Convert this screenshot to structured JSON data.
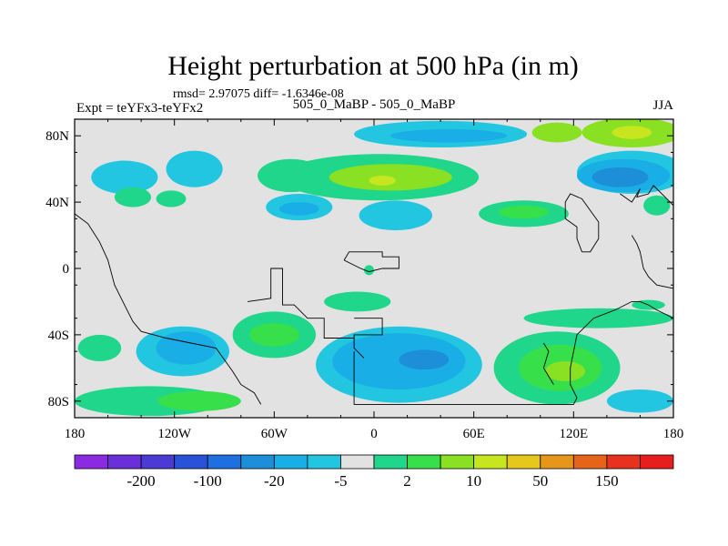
{
  "chart_data": {
    "type": "heatmap",
    "title": "Height perturbation at 500 hPa (in m)",
    "stats": "rmsd= 2.97075  diff= -1.6346e-08",
    "left_label": "Expt = teYFx3-teYFx2",
    "center_label": "505_0_MaBP - 505_0_MaBP",
    "right_label": "JJA",
    "projection": "cylindrical-equidistant",
    "xlim": [
      -180,
      180
    ],
    "ylim": [
      -90,
      90
    ],
    "x_ticks": [
      {
        "value": -180,
        "label": "180"
      },
      {
        "value": -120,
        "label": "120W"
      },
      {
        "value": -60,
        "label": "60W"
      },
      {
        "value": 0,
        "label": "0"
      },
      {
        "value": 60,
        "label": "60E"
      },
      {
        "value": 120,
        "label": "120E"
      },
      {
        "value": 180,
        "label": "180"
      }
    ],
    "y_ticks": [
      {
        "value": 80,
        "label": "80N"
      },
      {
        "value": 40,
        "label": "40N"
      },
      {
        "value": 0,
        "label": "0"
      },
      {
        "value": -40,
        "label": "40S"
      },
      {
        "value": -80,
        "label": "80S"
      }
    ],
    "colorbar": {
      "colors": [
        "#8a2be2",
        "#6a2fd8",
        "#4b3bd4",
        "#2a52d8",
        "#1f6fe0",
        "#1d8fd8",
        "#1aaee6",
        "#22c6e0",
        "#e2e2e2",
        "#1fd68a",
        "#37e04a",
        "#8ae022",
        "#c8e620",
        "#e6c81c",
        "#e6961a",
        "#e6641a",
        "#e6321e",
        "#e61e1e"
      ],
      "labels": [
        {
          "after_box": 2,
          "text": "-200"
        },
        {
          "after_box": 4,
          "text": "-100"
        },
        {
          "after_box": 6,
          "text": "-20"
        },
        {
          "after_box": 8,
          "text": "-5"
        },
        {
          "after_box": 10,
          "text": "2"
        },
        {
          "after_box": 12,
          "text": "10"
        },
        {
          "after_box": 14,
          "text": "50"
        },
        {
          "after_box": 16,
          "text": "150"
        }
      ]
    },
    "blobs": [
      {
        "lon": 155,
        "lat": 82,
        "rlon": 30,
        "rlat": 9,
        "level": 11
      },
      {
        "lon": 155,
        "lat": 82,
        "rlon": 12,
        "rlat": 4,
        "level": 12
      },
      {
        "lon": 155,
        "lat": 58,
        "rlon": 33,
        "rlat": 13,
        "level": 7
      },
      {
        "lon": 150,
        "lat": 56,
        "rlon": 28,
        "rlat": 10,
        "level": 6
      },
      {
        "lon": 148,
        "lat": 55,
        "rlon": 17,
        "rlat": 6,
        "level": 5
      },
      {
        "lon": 110,
        "lat": 82,
        "rlon": 15,
        "rlat": 6,
        "level": 11
      },
      {
        "lon": 40,
        "lat": 81,
        "rlon": 52,
        "rlat": 8,
        "level": 7
      },
      {
        "lon": 45,
        "lat": 80,
        "rlon": 35,
        "rlat": 4,
        "level": 6
      },
      {
        "lon": 3,
        "lat": 55,
        "rlon": 60,
        "rlat": 14,
        "level": 9
      },
      {
        "lon": -50,
        "lat": 56,
        "rlon": 20,
        "rlat": 10,
        "level": 9
      },
      {
        "lon": 10,
        "lat": 55,
        "rlon": 37,
        "rlat": 8,
        "level": 11
      },
      {
        "lon": 5,
        "lat": 53,
        "rlon": 8,
        "rlat": 3,
        "level": 12
      },
      {
        "lon": -150,
        "lat": 55,
        "rlon": 20,
        "rlat": 10,
        "level": 7
      },
      {
        "lon": -108,
        "lat": 60,
        "rlon": 17,
        "rlat": 11,
        "level": 7
      },
      {
        "lon": -145,
        "lat": 43,
        "rlon": 11,
        "rlat": 6,
        "level": 9
      },
      {
        "lon": -122,
        "lat": 42,
        "rlon": 9,
        "rlat": 5,
        "level": 9
      },
      {
        "lon": -45,
        "lat": 37,
        "rlon": 20,
        "rlat": 8,
        "level": 7
      },
      {
        "lon": -45,
        "lat": 36,
        "rlon": 12,
        "rlat": 4,
        "level": 6
      },
      {
        "lon": 13,
        "lat": 32,
        "rlon": 22,
        "rlat": 9,
        "level": 7
      },
      {
        "lon": 90,
        "lat": 33,
        "rlon": 27,
        "rlat": 8,
        "level": 9
      },
      {
        "lon": 90,
        "lat": 34,
        "rlon": 15,
        "rlat": 4,
        "level": 10
      },
      {
        "lon": 170,
        "lat": 38,
        "rlon": 8,
        "rlat": 6,
        "level": 9
      },
      {
        "lon": -3,
        "lat": -1,
        "rlon": 3,
        "rlat": 3,
        "level": 9
      },
      {
        "lon": -60,
        "lat": -40,
        "rlon": 25,
        "rlat": 14,
        "level": 9
      },
      {
        "lon": -60,
        "lat": -40,
        "rlon": 15,
        "rlat": 7,
        "level": 10
      },
      {
        "lon": -115,
        "lat": -50,
        "rlon": 28,
        "rlat": 15,
        "level": 7
      },
      {
        "lon": -113,
        "lat": -48,
        "rlon": 18,
        "rlat": 10,
        "level": 6
      },
      {
        "lon": -165,
        "lat": -48,
        "rlon": 13,
        "rlat": 8,
        "level": 9
      },
      {
        "lon": -135,
        "lat": -80,
        "rlon": 45,
        "rlat": 9,
        "level": 9
      },
      {
        "lon": -105,
        "lat": -80,
        "rlon": 25,
        "rlat": 6,
        "level": 10
      },
      {
        "lon": -10,
        "lat": -20,
        "rlon": 20,
        "rlat": 6,
        "level": 9
      },
      {
        "lon": 15,
        "lat": -58,
        "rlon": 50,
        "rlat": 23,
        "level": 7
      },
      {
        "lon": 15,
        "lat": -56,
        "rlon": 40,
        "rlat": 17,
        "level": 6
      },
      {
        "lon": 30,
        "lat": -55,
        "rlon": 15,
        "rlat": 6,
        "level": 5
      },
      {
        "lon": 110,
        "lat": -60,
        "rlon": 38,
        "rlat": 22,
        "level": 9
      },
      {
        "lon": 112,
        "lat": -60,
        "rlon": 25,
        "rlat": 14,
        "level": 10
      },
      {
        "lon": 115,
        "lat": -62,
        "rlon": 12,
        "rlat": 6,
        "level": 11
      },
      {
        "lon": 160,
        "lat": -80,
        "rlon": 20,
        "rlat": 7,
        "level": 7
      },
      {
        "lon": 135,
        "lat": -30,
        "rlon": 45,
        "rlat": 6,
        "level": 9
      },
      {
        "lon": 165,
        "lat": -22,
        "rlon": 10,
        "rlat": 3,
        "level": 9
      }
    ],
    "coastlines": [
      [
        [
          -180,
          33
        ],
        [
          -172,
          27
        ],
        [
          -165,
          16
        ],
        [
          -160,
          5
        ],
        [
          -156,
          -10
        ],
        [
          -150,
          -22
        ],
        [
          -145,
          -32
        ],
        [
          -140,
          -38
        ],
        [
          -125,
          -42
        ],
        [
          -110,
          -45
        ],
        [
          -95,
          -48
        ],
        [
          -90,
          -55
        ],
        [
          -85,
          -62
        ],
        [
          -80,
          -70
        ],
        [
          -72,
          -75
        ],
        [
          -68,
          -82
        ]
      ],
      [
        [
          -76,
          -20
        ],
        [
          -62,
          -18
        ],
        [
          -62,
          0
        ],
        [
          -55,
          0
        ],
        [
          -55,
          -22
        ],
        [
          -48,
          -22
        ],
        [
          -40,
          -30
        ],
        [
          -30,
          -30
        ],
        [
          -30,
          -42
        ],
        [
          -20,
          -42
        ],
        [
          -12,
          -42
        ]
      ],
      [
        [
          -12,
          -30
        ],
        [
          5,
          -30
        ],
        [
          5,
          -40
        ],
        [
          -12,
          -40
        ],
        [
          -12,
          -48
        ],
        [
          -6,
          -54
        ]
      ],
      [
        [
          -18,
          5
        ],
        [
          -15,
          10
        ],
        [
          5,
          10
        ],
        [
          5,
          7
        ],
        [
          15,
          7
        ],
        [
          15,
          0
        ],
        [
          5,
          0
        ],
        [
          -3,
          -2
        ],
        [
          -8,
          0
        ],
        [
          -18,
          5
        ]
      ],
      [
        [
          -12,
          -50
        ],
        [
          -12,
          -82
        ],
        [
          10,
          -82
        ],
        [
          60,
          -82
        ],
        [
          120,
          -82
        ],
        [
          122,
          -78
        ],
        [
          118,
          -70
        ],
        [
          118,
          -60
        ],
        [
          122,
          -40
        ],
        [
          132,
          -30
        ],
        [
          145,
          -25
        ],
        [
          155,
          -20
        ],
        [
          160,
          -20
        ],
        [
          165,
          -22
        ],
        [
          170,
          -25
        ],
        [
          176,
          -28
        ],
        [
          180,
          -30
        ]
      ],
      [
        [
          102,
          -45
        ],
        [
          105,
          -50
        ],
        [
          102,
          -60
        ],
        [
          108,
          -70
        ]
      ],
      [
        [
          125,
          10
        ],
        [
          122,
          18
        ],
        [
          122,
          25
        ],
        [
          115,
          30
        ],
        [
          115,
          40
        ],
        [
          118,
          45
        ],
        [
          125,
          42
        ],
        [
          130,
          35
        ],
        [
          135,
          28
        ],
        [
          135,
          18
        ],
        [
          130,
          10
        ],
        [
          125,
          10
        ]
      ],
      [
        [
          148,
          45
        ],
        [
          155,
          40
        ],
        [
          160,
          48
        ],
        [
          158,
          43
        ],
        [
          165,
          45
        ],
        [
          168,
          50
        ],
        [
          175,
          43
        ],
        [
          178,
          40
        ],
        [
          180,
          38
        ]
      ],
      [
        [
          155,
          20
        ],
        [
          158,
          15
        ],
        [
          160,
          10
        ],
        [
          162,
          0
        ],
        [
          165,
          -5
        ],
        [
          170,
          -10
        ],
        [
          180,
          -12
        ]
      ]
    ]
  }
}
